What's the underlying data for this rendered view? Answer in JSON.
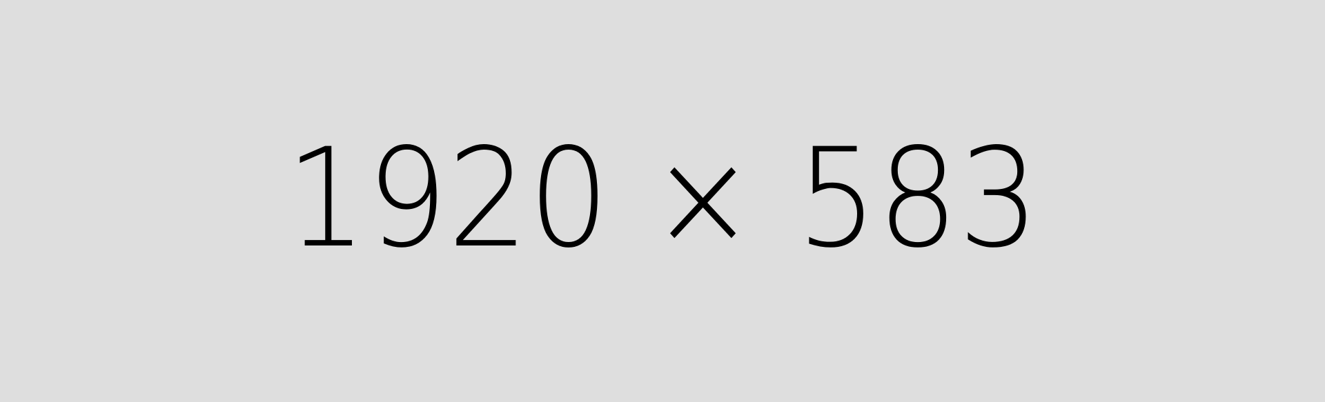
{
  "placeholder": {
    "dimensions_text": "1920 × 583",
    "background_color": "#dedede",
    "text_color": "#000000"
  }
}
